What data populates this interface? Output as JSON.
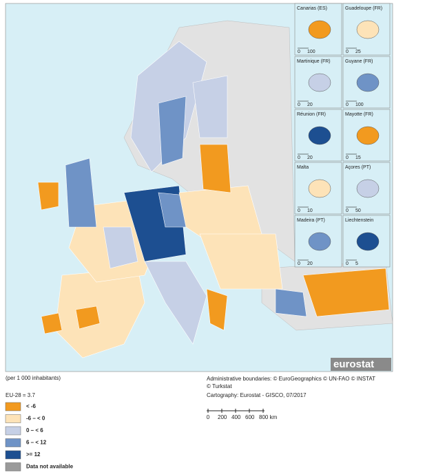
{
  "map": {
    "brand": "eurostat",
    "insets": [
      {
        "label": "Canarias (ES)",
        "scale": [
          "0",
          "100"
        ]
      },
      {
        "label": "Guadeloupe (FR)",
        "scale": [
          "0",
          "25"
        ]
      },
      {
        "label": "Martinique (FR)",
        "scale": [
          "0",
          "20"
        ]
      },
      {
        "label": "Guyane (FR)",
        "scale": [
          "0",
          "100"
        ]
      },
      {
        "label": "Réunion (FR)",
        "scale": [
          "0",
          "20"
        ]
      },
      {
        "label": "Mayotte (FR)",
        "scale": [
          "0",
          "15"
        ]
      },
      {
        "label": "Malta",
        "scale": [
          "0",
          "10"
        ]
      },
      {
        "label": "Açores (PT)",
        "scale": [
          "0",
          "50"
        ]
      },
      {
        "label": "Madeira (PT)",
        "scale": [
          "0",
          "20"
        ]
      },
      {
        "label": "Liechtenstein",
        "scale": [
          "0",
          "5"
        ]
      }
    ]
  },
  "legend": {
    "unit": "(per 1 000 inhabitants)",
    "reference": "EU-28 = 3.7",
    "classes": [
      {
        "label": "< -6",
        "color": "#f29a1f"
      },
      {
        "label": "-6 – < 0",
        "color": "#fde3b8"
      },
      {
        "label": "0 – < 6",
        "color": "#c6d0e6"
      },
      {
        "label": "6 – < 12",
        "color": "#6f93c6"
      },
      {
        "label": ">= 12",
        "color": "#1d4f91"
      },
      {
        "label": "Data not available",
        "color": "#9a9a9a"
      }
    ]
  },
  "credits": {
    "boundaries": "Administrative boundaries: © EuroGeographics © UN-FAO © INSTAT",
    "boundaries_cont": "© Turkstat",
    "cartography": "Cartography: Eurostat - GISCO, 07/2017"
  },
  "scale_bar": {
    "labels": [
      "0",
      "200",
      "400",
      "600",
      "800 km"
    ]
  }
}
